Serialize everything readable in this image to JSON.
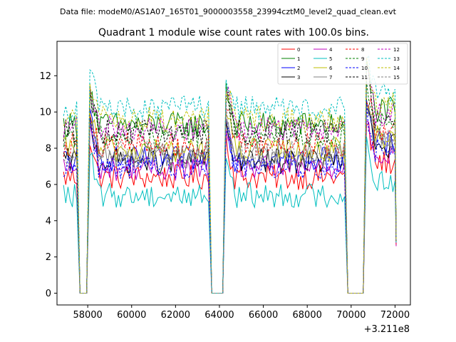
{
  "figure": {
    "suptitle": "Data file: modeM0/AS1A07_165T01_9000003558_23994cztM0_level2_quad_clean.evt"
  },
  "chart_data": {
    "type": "line",
    "title": "Quadrant 1 module wise count rates with 100.0s bins.",
    "xlabel": "",
    "ylabel": "",
    "x_offset_label": "+3.211e8",
    "xlim": [
      56600,
      72700
    ],
    "ylim": [
      -0.65,
      13.9
    ],
    "xticks": [
      58000,
      60000,
      62000,
      64000,
      66000,
      68000,
      70000,
      72000
    ],
    "xtick_labels": [
      "58000",
      "60000",
      "62000",
      "64000",
      "66000",
      "68000",
      "70000",
      "72000"
    ],
    "yticks": [
      0,
      2,
      4,
      6,
      8,
      10,
      12
    ],
    "ytick_labels": [
      "0",
      "2",
      "4",
      "6",
      "8",
      "10",
      "12"
    ],
    "grid": false,
    "legend_position": "top-right",
    "bin_seconds": 100,
    "segments": [
      {
        "start": 56900,
        "end": 57500
      },
      {
        "start": 58100,
        "end": 63500
      },
      {
        "start": 64300,
        "end": 69700
      },
      {
        "start": 70700,
        "end": 72000
      }
    ],
    "gaps_value": 0,
    "series": [
      {
        "name": "0",
        "color": "#ff0000",
        "style": "solid",
        "level": 6.4
      },
      {
        "name": "1",
        "color": "#008000",
        "style": "solid",
        "level": 9.3
      },
      {
        "name": "2",
        "color": "#0000ff",
        "style": "solid",
        "level": 7.4
      },
      {
        "name": "3",
        "color": "#000000",
        "style": "solid",
        "level": 7.3
      },
      {
        "name": "4",
        "color": "#bf00bf",
        "style": "solid",
        "level": 6.9
      },
      {
        "name": "5",
        "color": "#00bfbf",
        "style": "solid",
        "level": 5.4
      },
      {
        "name": "6",
        "color": "#bfbf00",
        "style": "solid",
        "level": 7.9
      },
      {
        "name": "7",
        "color": "#808080",
        "style": "solid",
        "level": 7.6
      },
      {
        "name": "8",
        "color": "#ff0000",
        "style": "dashed",
        "level": 8.2
      },
      {
        "name": "9",
        "color": "#008000",
        "style": "dashed",
        "level": 8.7
      },
      {
        "name": "10",
        "color": "#0000ff",
        "style": "dashed",
        "level": 7.0
      },
      {
        "name": "11",
        "color": "#000000",
        "style": "dashed",
        "level": 8.9
      },
      {
        "name": "12",
        "color": "#bf00bf",
        "style": "dashed",
        "level": 9.1
      },
      {
        "name": "13",
        "color": "#00bfbf",
        "style": "dashed",
        "level": 10.2
      },
      {
        "name": "14",
        "color": "#bfbf00",
        "style": "dashed",
        "level": 9.6
      },
      {
        "name": "15",
        "color": "#808080",
        "style": "dashed",
        "level": 7.7
      }
    ]
  }
}
